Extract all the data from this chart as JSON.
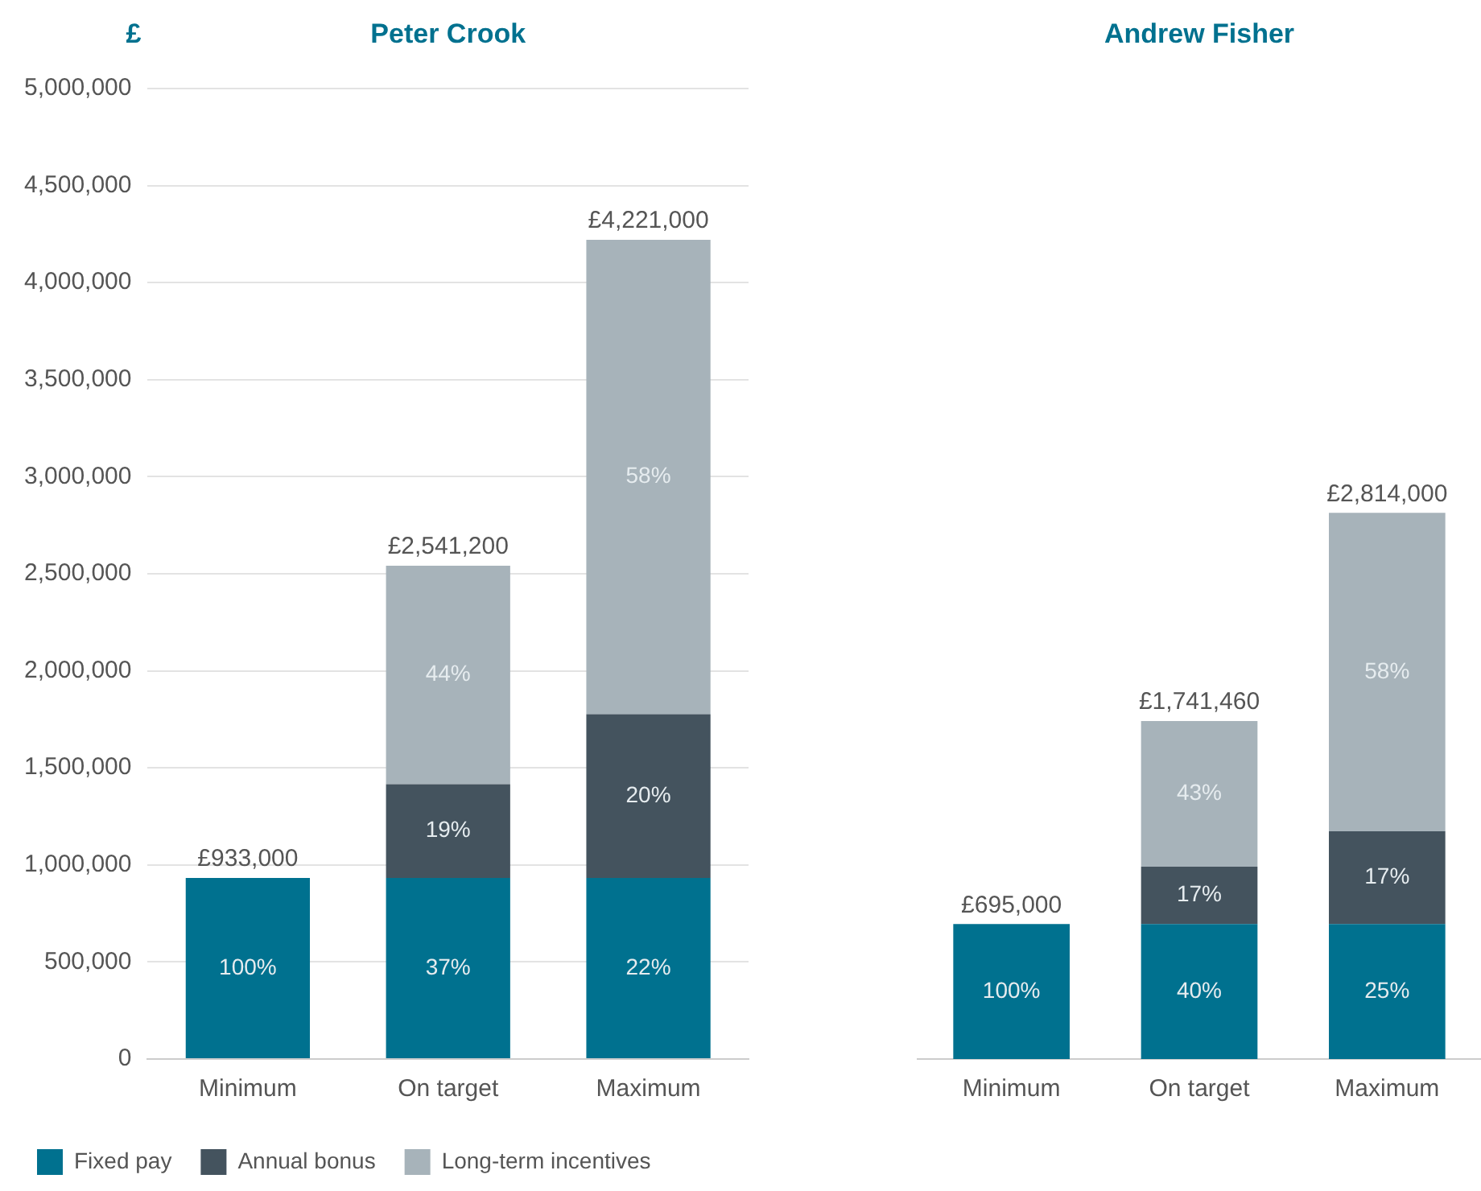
{
  "chart_data": [
    {
      "type": "bar",
      "stacked": true,
      "title": "Peter Crook",
      "ylabel": "£",
      "categories": [
        "Minimum",
        "On target",
        "Maximum"
      ],
      "series": [
        {
          "name": "Fixed pay",
          "color": "#00718f",
          "values": [
            933000,
            933000,
            933000
          ]
        },
        {
          "name": "Annual bonus",
          "color": "#44535e",
          "values": [
            null,
            483000,
            844000
          ]
        },
        {
          "name": "Long-term incentives",
          "color": "#a7b3ba",
          "values": [
            null,
            1125200,
            2444000
          ]
        }
      ],
      "annotations": [
        "100%",
        "37%",
        "19%",
        "44%",
        "22%",
        "20%",
        "58%"
      ],
      "totals": [
        "£933,000",
        "£2,541,200",
        "£4,221,000"
      ],
      "ylim": [
        0,
        5000000
      ],
      "yticks": [
        {
          "value": 0,
          "label": "0"
        },
        {
          "value": 500000,
          "label": "500,000"
        },
        {
          "value": 1000000,
          "label": "1,000,000"
        },
        {
          "value": 1500000,
          "label": "1,500,000"
        },
        {
          "value": 2000000,
          "label": "2,000,000"
        },
        {
          "value": 2500000,
          "label": "2,500,000"
        },
        {
          "value": 3000000,
          "label": "3,000,000"
        },
        {
          "value": 3500000,
          "label": "3,500,000"
        },
        {
          "value": 4000000,
          "label": "4,000,000"
        },
        {
          "value": 4500000,
          "label": "4,500,000"
        },
        {
          "value": 5000000,
          "label": "5,000,000"
        }
      ],
      "grid": "y",
      "legend": "bottom left"
    },
    {
      "type": "bar",
      "stacked": true,
      "title": "Andrew Fisher",
      "categories": [
        "Minimum",
        "On target",
        "Maximum"
      ],
      "series": [
        {
          "color": "#00718f",
          "values": [
            695000,
            695000,
            695000
          ]
        },
        {
          "color": "#44535e",
          "values": [
            null,
            296000,
            478000
          ]
        },
        {
          "color": "#a7b3ba",
          "values": [
            null,
            750460,
            1641000
          ]
        }
      ],
      "annotations": [
        "100%",
        "40%",
        "17%",
        "43%",
        "25%",
        "17%",
        "58%"
      ],
      "totals": [
        "£695,000",
        "£1,741,460",
        "£2,814,000"
      ],
      "ylim": [
        0,
        5000000
      ],
      "yticks": [
        {
          "value": 0,
          "label": null
        },
        {
          "value": 500000,
          "label": null
        },
        {
          "value": 1000000,
          "label": null
        },
        {
          "value": 1500000,
          "label": null
        },
        {
          "value": 2000000,
          "label": null
        },
        {
          "value": 2500000,
          "label": null
        },
        {
          "value": 3000000,
          "label": null
        },
        {
          "value": 3500000,
          "label": null
        },
        {
          "value": 4000000,
          "label": null
        },
        {
          "value": 4500000,
          "label": null
        },
        {
          "value": 5000000,
          "label": null
        }
      ],
      "grid": "y",
      "tick_labels": "x"
    }
  ]
}
